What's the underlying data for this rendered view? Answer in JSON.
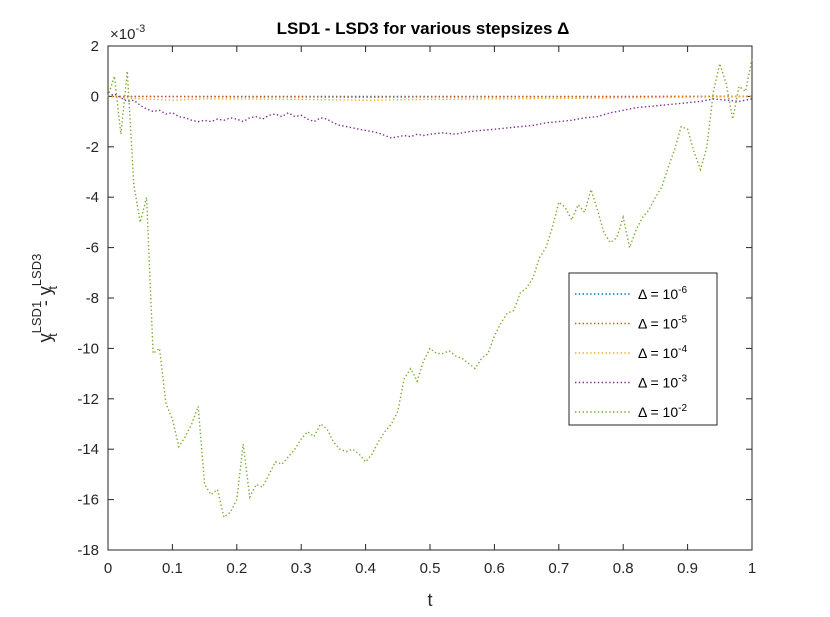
{
  "chart_data": {
    "type": "line",
    "title": "LSD1 - LSD3 for various stepsizes Δ",
    "xlabel": "t",
    "ylabel": {
      "base1": "y",
      "sub1": "t",
      "sup1": "LSD1",
      "minus": " - ",
      "base2": "y",
      "sub2": "t",
      "sup2": "LSD3"
    },
    "y_exponent_label": {
      "base": "×10",
      "exp": "-3"
    },
    "xlim": [
      0,
      1
    ],
    "ylim": [
      -18,
      2
    ],
    "xticks": [
      0,
      0.1,
      0.2,
      0.3,
      0.4,
      0.5,
      0.6,
      0.7,
      0.8,
      0.9,
      1
    ],
    "xtick_labels": [
      "0",
      "0.1",
      "0.2",
      "0.3",
      "0.4",
      "0.5",
      "0.6",
      "0.7",
      "0.8",
      "0.9",
      "1"
    ],
    "yticks": [
      -18,
      -16,
      -14,
      -12,
      -10,
      -8,
      -6,
      -4,
      -2,
      0,
      2
    ],
    "ytick_labels": [
      "-18",
      "-16",
      "-14",
      "-12",
      "-10",
      "-8",
      "-6",
      "-4",
      "-2",
      "0",
      "2"
    ],
    "grid": false,
    "legend_position": "middle-right",
    "series": [
      {
        "name_base": "Δ = 10",
        "name_exp": "-6",
        "color": "#0072BD",
        "x": [
          0,
          0.1,
          0.2,
          0.3,
          0.4,
          0.5,
          0.6,
          0.7,
          0.8,
          0.9,
          1
        ],
        "y": [
          0,
          0,
          0,
          0,
          0,
          0,
          0,
          0,
          0,
          0,
          0
        ]
      },
      {
        "name_base": "Δ = 10",
        "name_exp": "-5",
        "color": "#D95319",
        "x": [
          0,
          0.1,
          0.2,
          0.3,
          0.4,
          0.5,
          0.6,
          0.7,
          0.8,
          0.9,
          1
        ],
        "y": [
          0,
          -0.01,
          -0.02,
          -0.02,
          -0.03,
          -0.02,
          -0.02,
          -0.01,
          -0.01,
          0,
          0
        ]
      },
      {
        "name_base": "Δ = 10",
        "name_exp": "-4",
        "color": "#EDB120",
        "x": [
          0,
          0.05,
          0.1,
          0.15,
          0.2,
          0.3,
          0.4,
          0.5,
          0.6,
          0.7,
          0.8,
          0.9,
          1
        ],
        "y": [
          0,
          -0.1,
          -0.15,
          -0.1,
          -0.1,
          -0.12,
          -0.15,
          -0.12,
          -0.1,
          -0.08,
          -0.06,
          -0.03,
          0
        ]
      },
      {
        "name_base": "Δ = 10",
        "name_exp": "-3",
        "color": "#7E2F8E",
        "x": [
          0,
          0.01,
          0.02,
          0.03,
          0.04,
          0.05,
          0.06,
          0.07,
          0.08,
          0.09,
          0.1,
          0.11,
          0.12,
          0.13,
          0.14,
          0.15,
          0.16,
          0.17,
          0.18,
          0.19,
          0.2,
          0.21,
          0.22,
          0.23,
          0.24,
          0.25,
          0.26,
          0.27,
          0.28,
          0.29,
          0.3,
          0.31,
          0.32,
          0.33,
          0.34,
          0.35,
          0.36,
          0.37,
          0.38,
          0.39,
          0.4,
          0.41,
          0.42,
          0.43,
          0.44,
          0.45,
          0.46,
          0.47,
          0.48,
          0.49,
          0.5,
          0.52,
          0.54,
          0.56,
          0.58,
          0.6,
          0.62,
          0.64,
          0.66,
          0.68,
          0.7,
          0.72,
          0.74,
          0.76,
          0.78,
          0.8,
          0.82,
          0.84,
          0.86,
          0.88,
          0.9,
          0.92,
          0.94,
          0.96,
          0.98,
          1
        ],
        "y": [
          0,
          0.1,
          -0.05,
          -0.2,
          -0.15,
          -0.35,
          -0.5,
          -0.6,
          -0.55,
          -0.7,
          -0.65,
          -0.8,
          -0.85,
          -0.95,
          -1.0,
          -0.95,
          -1.0,
          -0.9,
          -0.95,
          -0.85,
          -0.9,
          -1.0,
          -0.85,
          -0.8,
          -0.9,
          -0.75,
          -0.7,
          -0.8,
          -0.65,
          -0.8,
          -0.75,
          -0.9,
          -1.0,
          -0.85,
          -0.9,
          -1.05,
          -1.15,
          -1.2,
          -1.25,
          -1.3,
          -1.35,
          -1.4,
          -1.45,
          -1.55,
          -1.65,
          -1.6,
          -1.55,
          -1.6,
          -1.5,
          -1.55,
          -1.5,
          -1.45,
          -1.5,
          -1.4,
          -1.35,
          -1.3,
          -1.25,
          -1.2,
          -1.15,
          -1.05,
          -1.0,
          -0.95,
          -0.85,
          -0.8,
          -0.65,
          -0.55,
          -0.45,
          -0.4,
          -0.35,
          -0.3,
          -0.25,
          -0.2,
          -0.1,
          -0.15,
          -0.2,
          -0.1
        ]
      },
      {
        "name_base": "Δ = 10",
        "name_exp": "-2",
        "color": "#77AC30",
        "x": [
          0,
          0.01,
          0.02,
          0.03,
          0.04,
          0.05,
          0.06,
          0.07,
          0.08,
          0.09,
          0.1,
          0.11,
          0.12,
          0.13,
          0.14,
          0.15,
          0.16,
          0.17,
          0.18,
          0.19,
          0.2,
          0.21,
          0.22,
          0.23,
          0.24,
          0.25,
          0.26,
          0.27,
          0.28,
          0.29,
          0.3,
          0.31,
          0.32,
          0.33,
          0.34,
          0.35,
          0.36,
          0.37,
          0.38,
          0.39,
          0.4,
          0.41,
          0.42,
          0.43,
          0.44,
          0.45,
          0.46,
          0.47,
          0.48,
          0.49,
          0.5,
          0.51,
          0.52,
          0.53,
          0.54,
          0.55,
          0.56,
          0.57,
          0.58,
          0.59,
          0.6,
          0.61,
          0.62,
          0.63,
          0.64,
          0.65,
          0.66,
          0.67,
          0.68,
          0.69,
          0.7,
          0.71,
          0.72,
          0.73,
          0.74,
          0.75,
          0.76,
          0.77,
          0.78,
          0.79,
          0.8,
          0.81,
          0.82,
          0.83,
          0.84,
          0.85,
          0.86,
          0.87,
          0.88,
          0.89,
          0.9,
          0.91,
          0.92,
          0.93,
          0.94,
          0.95,
          0.96,
          0.97,
          0.98,
          0.99,
          1
        ],
        "y": [
          0,
          0.8,
          -1.5,
          1.0,
          -3.5,
          -5.0,
          -4.0,
          -10.2,
          -10.0,
          -12.2,
          -12.8,
          -13.9,
          -13.5,
          -13.0,
          -12.3,
          -15.4,
          -15.8,
          -15.6,
          -16.7,
          -16.5,
          -16.0,
          -13.8,
          -15.9,
          -15.4,
          -15.5,
          -15.0,
          -14.5,
          -14.6,
          -14.3,
          -14.0,
          -13.6,
          -13.3,
          -13.5,
          -13.0,
          -13.2,
          -13.7,
          -14.0,
          -14.1,
          -14.0,
          -14.2,
          -14.5,
          -14.2,
          -13.7,
          -13.3,
          -13.0,
          -12.5,
          -11.2,
          -10.8,
          -11.3,
          -10.5,
          -10.0,
          -10.2,
          -10.2,
          -10.1,
          -10.3,
          -10.4,
          -10.6,
          -10.8,
          -10.4,
          -10.2,
          -9.5,
          -9.0,
          -8.6,
          -8.5,
          -7.8,
          -7.6,
          -7.2,
          -6.4,
          -6.0,
          -5.2,
          -4.2,
          -4.4,
          -4.9,
          -4.3,
          -4.6,
          -3.7,
          -4.5,
          -5.4,
          -5.8,
          -5.6,
          -4.8,
          -6.0,
          -5.3,
          -4.8,
          -4.5,
          -4.0,
          -3.6,
          -2.8,
          -2.1,
          -1.2,
          -1.3,
          -2.2,
          -2.9,
          -2.0,
          0.2,
          1.3,
          0.5,
          -0.9,
          0.4,
          0.2,
          1.5
        ]
      }
    ]
  }
}
